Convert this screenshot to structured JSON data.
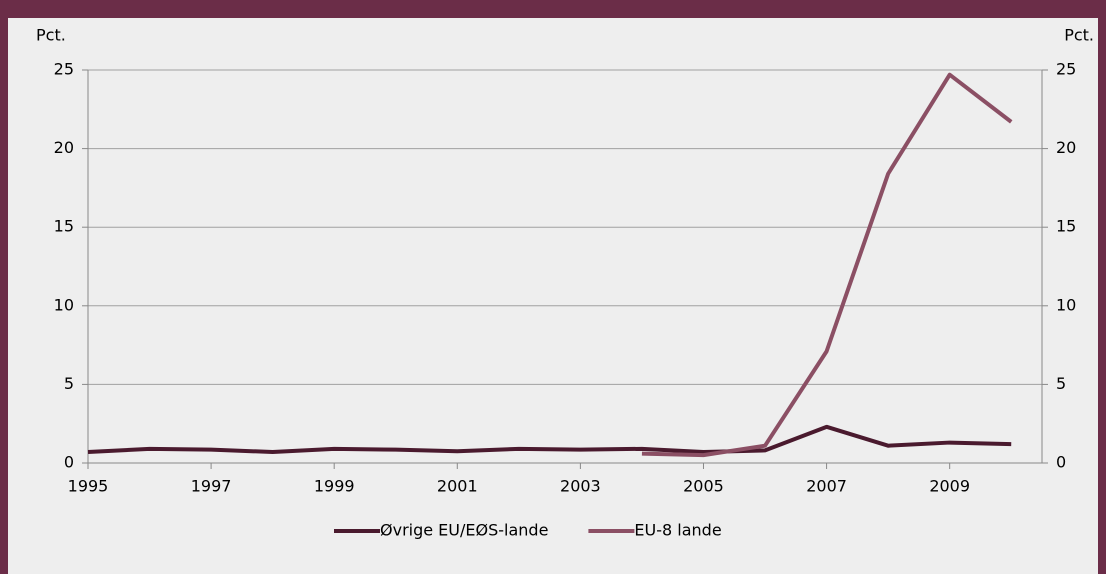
{
  "chart_data": {
    "type": "line",
    "y_label": "Pct.",
    "y2_label": "Pct.",
    "x": [
      1995,
      1996,
      1997,
      1998,
      1999,
      2000,
      2001,
      2002,
      2003,
      2004,
      2005,
      2006,
      2007,
      2008,
      2009,
      2010
    ],
    "series": [
      {
        "name": "Øvrige EU/EØS-lande",
        "color": "#4a1a2e",
        "values": [
          0.7,
          0.9,
          0.85,
          0.7,
          0.9,
          0.85,
          0.75,
          0.9,
          0.85,
          0.9,
          0.7,
          0.8,
          2.3,
          1.1,
          1.3,
          1.2
        ]
      },
      {
        "name": "EU-8 lande",
        "color": "#8b4f64",
        "axis": "y2",
        "values": [
          null,
          null,
          null,
          null,
          null,
          null,
          null,
          null,
          null,
          0.6,
          0.5,
          1.1,
          7.1,
          18.4,
          24.7,
          21.7
        ]
      }
    ],
    "xlim": [
      1995,
      2010.5
    ],
    "xticks": [
      1995,
      1997,
      1999,
      2001,
      2003,
      2005,
      2007,
      2009
    ],
    "ylim": [
      0,
      25
    ],
    "yticks": [
      0,
      5,
      10,
      15,
      20,
      25
    ],
    "y2lim": [
      0,
      25
    ],
    "y2ticks": [
      0,
      5,
      10,
      15,
      20,
      25
    ],
    "grid": true,
    "legend": "bottom"
  }
}
